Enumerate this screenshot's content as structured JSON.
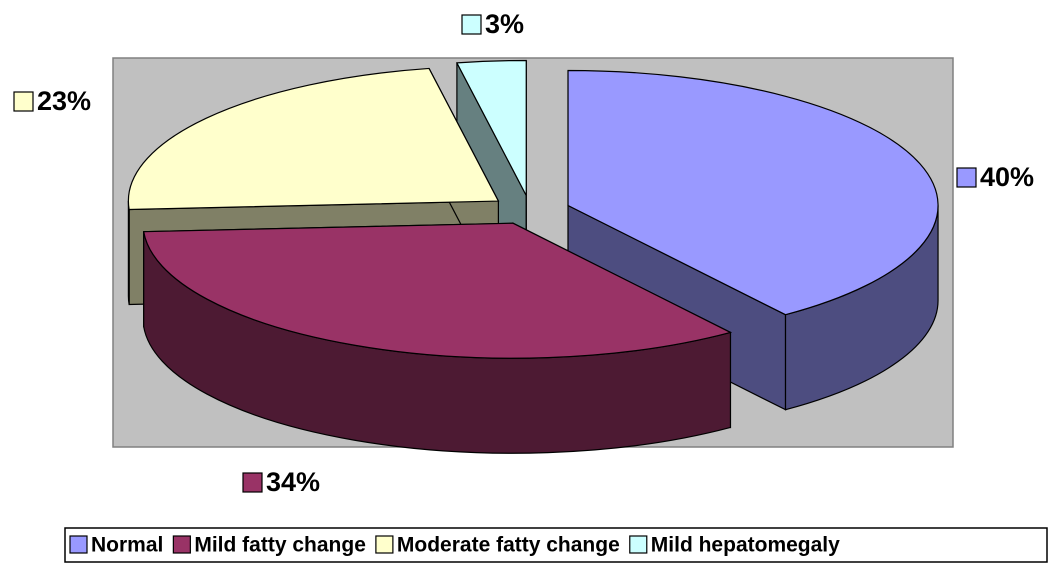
{
  "chart_data": {
    "type": "pie",
    "categories": [
      "Normal",
      "Mild fatty change",
      "Moderate fatty change",
      "Mild hepatomegaly"
    ],
    "values": [
      40,
      34,
      23,
      3
    ],
    "value_labels": [
      "40%",
      "34%",
      "23%",
      "3%"
    ],
    "colors": [
      "#9999ff",
      "#993366",
      "#ffffcc",
      "#ccffff"
    ],
    "legend": "bottom"
  }
}
